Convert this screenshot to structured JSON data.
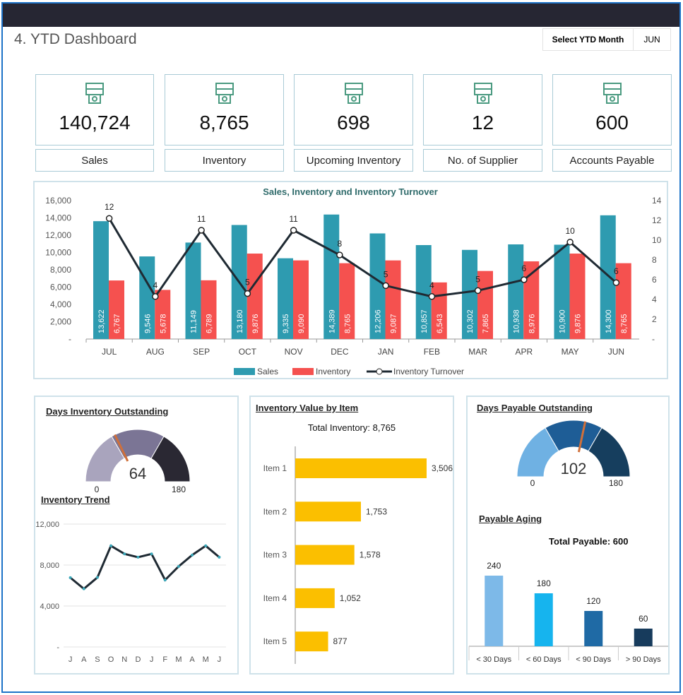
{
  "header": {
    "title": "4. YTD Dashboard",
    "select_label": "Select YTD Month",
    "select_value": "JUN"
  },
  "kpis": [
    {
      "value": "140,724",
      "label": "Sales",
      "icon": "money-hand-icon"
    },
    {
      "value": "8,765",
      "label": "Inventory",
      "icon": "warehouse-shelf-icon"
    },
    {
      "value": "698",
      "label": "Upcoming Inventory",
      "icon": "hand-truck-icon"
    },
    {
      "value": "12",
      "label": "No. of Supplier",
      "icon": "supplier-boxes-icon"
    },
    {
      "value": "600",
      "label": "Accounts Payable",
      "icon": "handshake-money-icon"
    }
  ],
  "colors": {
    "sales": "#2e9bb0",
    "inventory": "#f5514f",
    "turnover": "#1f2a33",
    "icon": "#4a9a80",
    "bar_yellow": "#fbbf00"
  },
  "chart_data": [
    {
      "type": "bar",
      "title": "Sales, Inventory and Inventory Turnover",
      "categories": [
        "JUL",
        "AUG",
        "SEP",
        "OCT",
        "NOV",
        "DEC",
        "JAN",
        "FEB",
        "MAR",
        "APR",
        "MAY",
        "JUN"
      ],
      "series": [
        {
          "name": "Sales",
          "type": "bar",
          "values": [
            13622,
            9546,
            11149,
            13180,
            9335,
            14389,
            12206,
            10857,
            10302,
            10938,
            10900,
            14300
          ],
          "labels": [
            "13,622",
            "9,546",
            "11,149",
            "13,180",
            "9,335",
            "14,389",
            "12,206",
            "10,857",
            "10,302",
            "10,938",
            "10,900",
            "14,300"
          ]
        },
        {
          "name": "Inventory",
          "type": "bar",
          "values": [
            6767,
            5678,
            6789,
            9876,
            9090,
            8765,
            9087,
            6543,
            7865,
            8976,
            9876,
            8765
          ],
          "labels": [
            "6,767",
            "5,678",
            "6,789",
            "9,876",
            "9,090",
            "8,765",
            "9,087",
            "6,543",
            "7,865",
            "8,976",
            "9,876",
            "8,765"
          ]
        },
        {
          "name": "Inventory Turnover",
          "type": "line",
          "axis": "right",
          "values": [
            12.2,
            4.3,
            11.0,
            4.6,
            11.0,
            8.5,
            5.4,
            4.3,
            4.9,
            6.0,
            9.8,
            5.7
          ],
          "labels": [
            "12",
            "4",
            "11",
            "5",
            "11",
            "8",
            "5",
            "4",
            "5",
            "6",
            "10",
            "6"
          ]
        }
      ],
      "ylim": [
        0,
        16000
      ],
      "y2lim": [
        0,
        14
      ],
      "yticks": [
        "-",
        "2,000",
        "4,000",
        "6,000",
        "8,000",
        "10,000",
        "12,000",
        "14,000",
        "16,000"
      ],
      "y2ticks": [
        "-",
        "2",
        "4",
        "6",
        "8",
        "10",
        "12",
        "14"
      ],
      "legend": "bottom"
    },
    {
      "type": "gauge",
      "title": "Days Inventory Outstanding",
      "value": 64,
      "min_label": "0",
      "max_label": "180",
      "min": 0,
      "max": 180,
      "bands": [
        60,
        120,
        180
      ],
      "band_colors": [
        "#a9a4bd",
        "#7b7595",
        "#2a2833"
      ]
    },
    {
      "type": "line",
      "title": "Inventory Trend",
      "categories": [
        "J",
        "A",
        "S",
        "O",
        "N",
        "D",
        "J",
        "F",
        "M",
        "A",
        "M",
        "J"
      ],
      "values": [
        6767,
        5678,
        6789,
        9876,
        9090,
        8765,
        9087,
        6543,
        7865,
        8976,
        9876,
        8765
      ],
      "ylim": [
        0,
        12000
      ],
      "yticks": [
        "-",
        "4,000",
        "8,000",
        "12,000"
      ]
    },
    {
      "type": "bar",
      "orientation": "horizontal",
      "title": "Inventory Value by Item",
      "subtitle": "Total Inventory: 8,765",
      "categories": [
        "Item 1",
        "Item 2",
        "Item 3",
        "Item 4",
        "Item 5"
      ],
      "values": [
        3506,
        1753,
        1578,
        1052,
        877
      ],
      "labels": [
        "3,506",
        "1,753",
        "1,578",
        "1,052",
        "877"
      ]
    },
    {
      "type": "gauge",
      "title": "Days Payable Outstanding",
      "value": 102,
      "min_label": "0",
      "max_label": "180",
      "min": 0,
      "max": 180,
      "bands": [
        60,
        120,
        180
      ],
      "band_colors": [
        "#6fb1e3",
        "#1e5d96",
        "#163e5e"
      ]
    },
    {
      "type": "bar",
      "title": "Payable Aging",
      "subtitle": "Total Payable: 600",
      "categories": [
        "< 30 Days",
        "< 60 Days",
        "< 90 Days",
        "> 90 Days"
      ],
      "values": [
        240,
        180,
        120,
        60
      ],
      "colors": [
        "#7db9e8",
        "#16b4ee",
        "#1f6aa5",
        "#173b5c"
      ]
    }
  ]
}
